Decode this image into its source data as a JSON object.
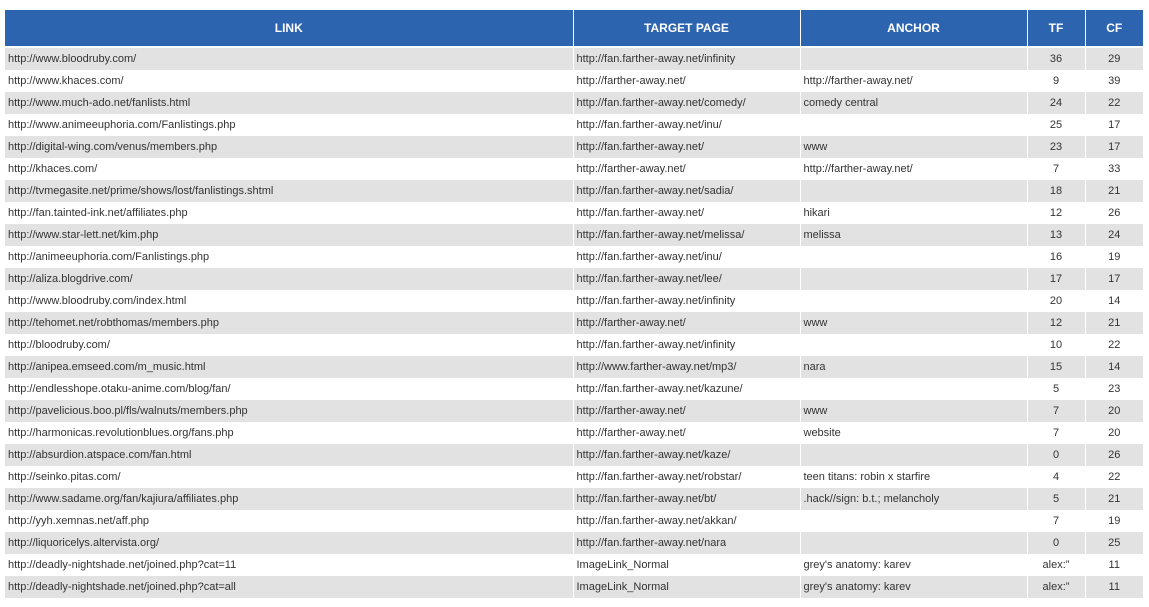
{
  "table": {
    "header": [
      "LINK",
      "TARGET PAGE",
      "ANCHOR",
      "TF",
      "CF"
    ],
    "rows": [
      [
        "http://www.bloodruby.com/",
        "http://fan.farther-away.net/infinity",
        null,
        36,
        29
      ],
      [
        "http://www.khaces.com/",
        "http://farther-away.net/",
        "http://farther-away.net/",
        9,
        39
      ],
      [
        "http://www.much-ado.net/fanlists.html",
        "http://fan.farther-away.net/comedy/",
        "comedy central",
        24,
        22
      ],
      [
        "http://www.animeeuphoria.com/Fanlistings.php",
        "http://fan.farther-away.net/inu/",
        null,
        25,
        17
      ],
      [
        "http://digital-wing.com/venus/members.php",
        "http://fan.farther-away.net/",
        "www",
        23,
        17
      ],
      [
        "http://khaces.com/",
        "http://farther-away.net/",
        "http://farther-away.net/",
        7,
        33
      ],
      [
        "http://tvmegasite.net/prime/shows/lost/fanlistings.shtml",
        "http://fan.farther-away.net/sadia/",
        null,
        18,
        21
      ],
      [
        "http://fan.tainted-ink.net/affiliates.php",
        "http://fan.farther-away.net/",
        "hikari",
        12,
        26
      ],
      [
        "http://www.star-lett.net/kim.php",
        "http://fan.farther-away.net/melissa/",
        "melissa",
        13,
        24
      ],
      [
        "http://animeeuphoria.com/Fanlistings.php",
        "http://fan.farther-away.net/inu/",
        null,
        16,
        19
      ],
      [
        "http://aliza.blogdrive.com/",
        "http://fan.farther-away.net/lee/",
        null,
        17,
        17
      ],
      [
        "http://www.bloodruby.com/index.html",
        "http://fan.farther-away.net/infinity",
        null,
        20,
        14
      ],
      [
        "http://tehomet.net/robthomas/members.php",
        "http://farther-away.net/",
        "www",
        12,
        21
      ],
      [
        "http://bloodruby.com/",
        "http://fan.farther-away.net/infinity",
        null,
        10,
        22
      ],
      [
        "http://anipea.emseed.com/m_music.html",
        "http://www.farther-away.net/mp3/",
        "nara",
        15,
        14
      ],
      [
        "http://endlesshope.otaku-anime.com/blog/fan/",
        "http://fan.farther-away.net/kazune/",
        null,
        5,
        23
      ],
      [
        "http://pavelicious.boo.pl/fls/walnuts/members.php",
        "http://farther-away.net/",
        "www",
        7,
        20
      ],
      [
        "http://harmonicas.revolutionblues.org/fans.php",
        "http://farther-away.net/",
        "website",
        7,
        20
      ],
      [
        "http://absurdion.atspace.com/fan.html",
        "http://fan.farther-away.net/kaze/",
        null,
        0,
        26
      ],
      [
        "http://seinko.pitas.com/",
        "http://fan.farther-away.net/robstar/",
        "teen titans: robin x starfire",
        4,
        22
      ],
      [
        "http://www.sadame.org/fan/kajiura/affiliates.php",
        "http://fan.farther-away.net/bt/",
        ".hack//sign: b.t.; melancholy",
        5,
        21
      ],
      [
        "http://yyh.xemnas.net/aff.php",
        "http://fan.farther-away.net/akkan/",
        null,
        7,
        19
      ],
      [
        "http://liquoricelys.altervista.org/",
        "http://fan.farther-away.net/nara",
        null,
        0,
        25
      ],
      [
        "http://deadly-nightshade.net/joined.php?cat=11",
        "ImageLink_Normal",
        "grey's anatomy: karev",
        "alex:”",
        11
      ],
      [
        "http://deadly-nightshade.net/joined.php?cat=all",
        "ImageLink_Normal",
        "grey's anatomy: karev",
        "alex:”",
        11
      ]
    ]
  }
}
